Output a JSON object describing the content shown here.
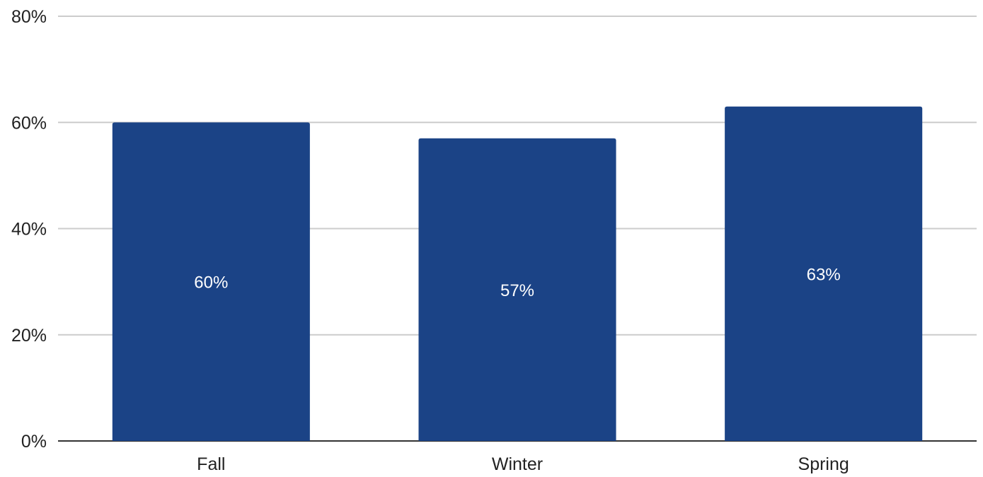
{
  "chart_data": {
    "type": "bar",
    "categories": [
      "Fall",
      "Winter",
      "Spring"
    ],
    "values": [
      60,
      57,
      63
    ],
    "data_labels": [
      "60%",
      "57%",
      "63%"
    ],
    "ylim": [
      0,
      80
    ],
    "yticks": [
      0,
      20,
      40,
      60,
      80
    ],
    "ytick_labels": [
      "0%",
      "20%",
      "40%",
      "60%",
      "80%"
    ],
    "grid": true,
    "legend": "none",
    "title": "",
    "xlabel": "",
    "ylabel": "",
    "bar_color": "#1b4386"
  }
}
